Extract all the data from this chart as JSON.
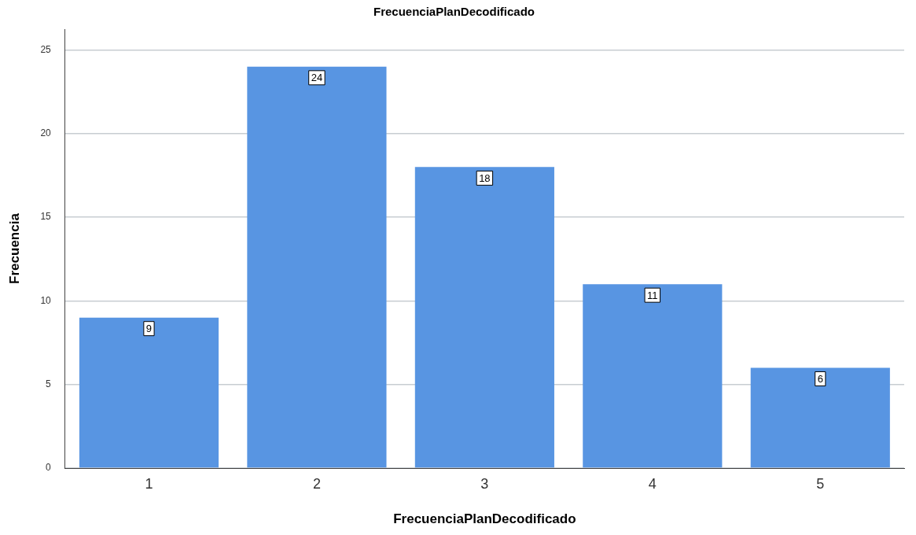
{
  "chart_data": {
    "type": "bar",
    "title": "FrecuenciaPlanDecodificado",
    "xlabel": "FrecuenciaPlanDecodificado",
    "ylabel": "Frecuencia",
    "categories": [
      "1",
      "2",
      "3",
      "4",
      "5"
    ],
    "values": [
      9,
      24,
      18,
      11,
      6
    ],
    "color": "#5895e2",
    "ylim": [
      0,
      26.25
    ],
    "yticks": [
      0,
      5,
      10,
      15,
      20,
      25
    ],
    "grid": "y",
    "data_labels": true
  }
}
